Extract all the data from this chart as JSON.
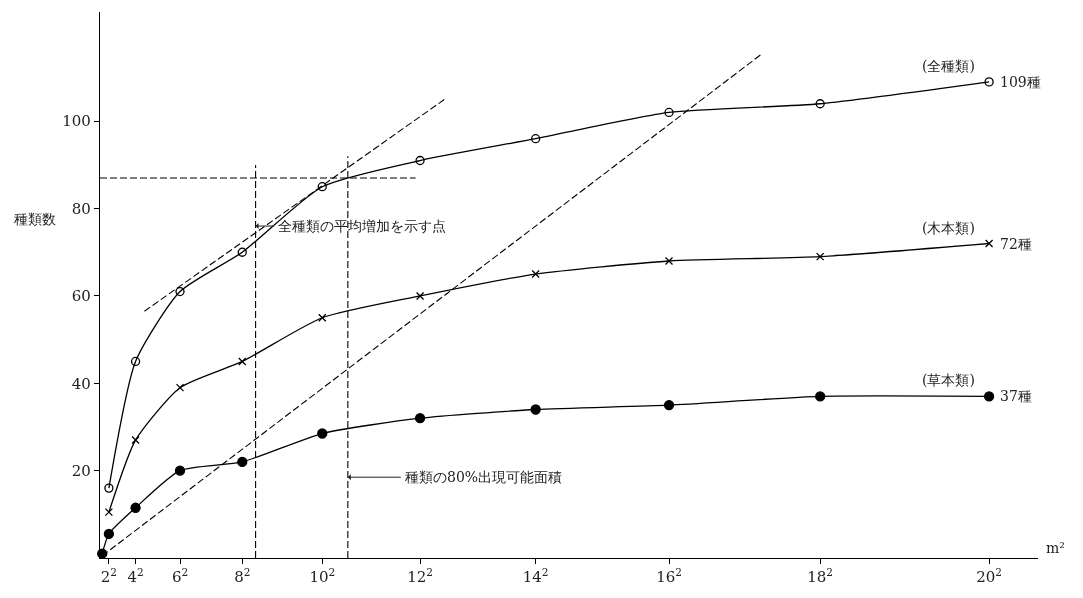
{
  "chart_data": {
    "type": "line",
    "xlabel": "m²",
    "ylabel": "種類数",
    "xlim": [
      0,
      422
    ],
    "ylim": [
      0,
      125
    ],
    "xticks": [
      {
        "value": 4,
        "label": "2$^{2}$"
      },
      {
        "value": 16,
        "label": "4$^{2}$"
      },
      {
        "value": 36,
        "label": "6$^{2}$"
      },
      {
        "value": 64,
        "label": "8$^{2}$"
      },
      {
        "value": 100,
        "label": "10$^{2}$"
      },
      {
        "value": 144,
        "label": "12$^{2}$"
      },
      {
        "value": 196,
        "label": "14$^{2}$"
      },
      {
        "value": 256,
        "label": "16$^{2}$"
      },
      {
        "value": 324,
        "label": "18$^{2}$"
      },
      {
        "value": 400,
        "label": "20$^{2}$"
      }
    ],
    "yticks": [
      20,
      40,
      60,
      80,
      100
    ],
    "legend": false,
    "series": [
      {
        "name": "(全種類)",
        "color": "#000000",
        "marker": "circle-open",
        "x": [
          4,
          16,
          36,
          64,
          100,
          144,
          196,
          256,
          324,
          400
        ],
        "values": [
          16,
          45,
          61,
          70,
          85,
          91,
          96,
          102,
          104,
          109
        ]
      },
      {
        "name": "(木本類)",
        "color": "#000000",
        "marker": "cross",
        "x": [
          4,
          16,
          36,
          64,
          100,
          144,
          196,
          256,
          324,
          400
        ],
        "values": [
          10.5,
          27,
          39,
          45,
          55,
          60,
          65,
          68,
          69,
          72
        ]
      },
      {
        "name": "(草本類)",
        "color": "#000000",
        "marker": "circle",
        "x": [
          1,
          4,
          16,
          36,
          64,
          100,
          144,
          196,
          256,
          324,
          400
        ],
        "values": [
          1,
          5.5,
          11.5,
          20,
          22,
          28.5,
          32,
          34,
          35,
          37,
          37
        ]
      },
      {
        "color": "#000000",
        "marker": "none",
        "line_style": "dashed",
        "x": [
          0,
          142
        ],
        "values": [
          87,
          87
        ]
      },
      {
        "color": "#000000",
        "marker": "none",
        "line_style": "dashed",
        "x": [
          70,
          70
        ],
        "values": [
          0,
          90
        ]
      },
      {
        "color": "#000000",
        "marker": "none",
        "line_style": "dashed",
        "x": [
          111.5,
          111.5
        ],
        "values": [
          0,
          92
        ]
      },
      {
        "color": "#000000",
        "marker": "none",
        "line_style": "dashed",
        "x": [
          20,
          155
        ],
        "values": [
          56.5,
          105
        ]
      },
      {
        "color": "#000000",
        "marker": "none",
        "line_style": "dashed",
        "x": [
          1,
          298
        ],
        "values": [
          0.5,
          115.5
        ]
      }
    ],
    "annotations": [
      {
        "text": "全種類の平均増加を示す点",
        "x": 70,
        "y": 76
      },
      {
        "text": "種類の80%出現可能面積",
        "x": 111.5,
        "y": 18.5
      },
      {
        "text": "109種",
        "x": 400,
        "y": 109
      },
      {
        "text": "72種",
        "x": 400,
        "y": 72
      },
      {
        "text": "37種",
        "x": 400,
        "y": 37
      }
    ]
  }
}
